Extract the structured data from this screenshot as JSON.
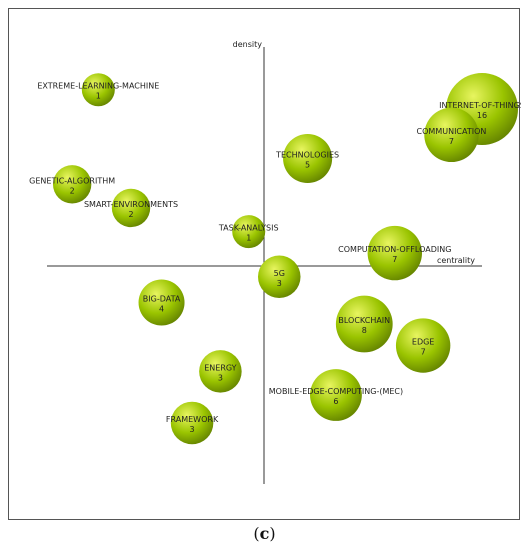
{
  "caption": {
    "open": "(",
    "letter": "c",
    "close": ")"
  },
  "chart_data": {
    "type": "scatter",
    "title": "",
    "xlabel": "centrality",
    "ylabel": "density",
    "bubble_color": "#9ac400",
    "bubble_highlight": "#e8f560",
    "bubble_edge": "#5f7d00",
    "points": [
      {
        "name": "EXTREME-LEARNING-MACHINE",
        "value": 1,
        "x": -0.76,
        "y": 0.82
      },
      {
        "name": "INTERNET-OF-THINGS",
        "value": 16,
        "x": 1.0,
        "y": 0.73
      },
      {
        "name": "COMMUNICATION",
        "value": 7,
        "x": 0.86,
        "y": 0.61
      },
      {
        "name": "TECHNOLOGIES",
        "value": 5,
        "x": 0.2,
        "y": 0.5
      },
      {
        "name": "GENETIC-ALGORITHM",
        "value": 2,
        "x": -0.88,
        "y": 0.38
      },
      {
        "name": "SMART-ENVIRONMENTS",
        "value": 2,
        "x": -0.61,
        "y": 0.27
      },
      {
        "name": "TASK-ANALYSIS",
        "value": 1,
        "x": -0.07,
        "y": 0.16
      },
      {
        "name": "COMPUTATION-OFFLOADING",
        "value": 7,
        "x": 0.6,
        "y": 0.06
      },
      {
        "name": "5G",
        "value": 3,
        "x": 0.07,
        "y": -0.05
      },
      {
        "name": "BIG-DATA",
        "value": 4,
        "x": -0.47,
        "y": -0.17
      },
      {
        "name": "BLOCKCHAIN",
        "value": 8,
        "x": 0.46,
        "y": -0.27
      },
      {
        "name": "EDGE",
        "value": 7,
        "x": 0.73,
        "y": -0.37
      },
      {
        "name": "ENERGY",
        "value": 3,
        "x": -0.2,
        "y": -0.49
      },
      {
        "name": "MOBILE-EDGE-COMPUTING-(MEC)",
        "value": 6,
        "x": 0.33,
        "y": -0.6
      },
      {
        "name": "FRAMEWORK",
        "value": 3,
        "x": -0.33,
        "y": -0.73
      }
    ]
  }
}
